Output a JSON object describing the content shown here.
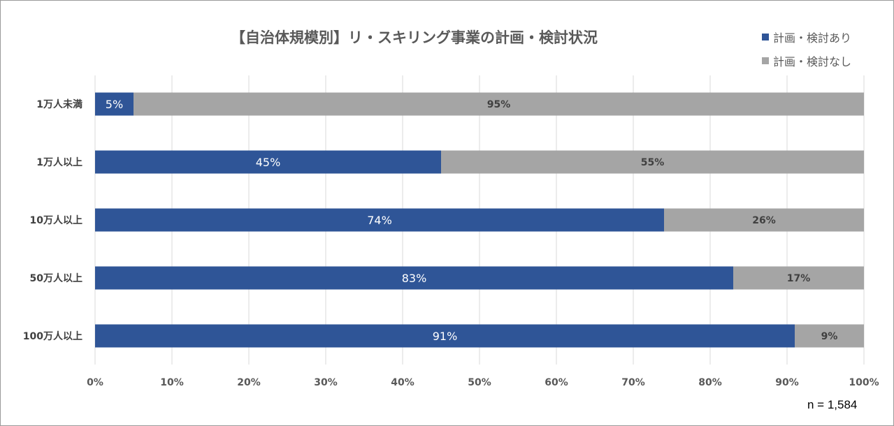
{
  "chart_data": {
    "type": "bar",
    "orientation": "horizontal",
    "stacked": true,
    "title": "【自治体規模別】リ・スキリング事業の計画・検討状況",
    "categories": [
      "1万人未満",
      "1万人以上",
      "10万人以上",
      "50万人以上",
      "100万人以上"
    ],
    "series": [
      {
        "name": "計画・検討あり",
        "values": [
          5,
          45,
          74,
          83,
          91
        ],
        "labels": [
          "5%",
          "45%",
          "74%",
          "83%",
          "91%"
        ],
        "color": "#2F5597"
      },
      {
        "name": "計画・検討なし",
        "values": [
          95,
          55,
          26,
          17,
          9
        ],
        "labels": [
          "95%",
          "55%",
          "26%",
          "17%",
          "9%"
        ],
        "color": "#A5A5A5"
      }
    ],
    "xlim": [
      0,
      100
    ],
    "xticks": [
      "0%",
      "10%",
      "20%",
      "30%",
      "40%",
      "50%",
      "60%",
      "70%",
      "80%",
      "90%",
      "100%"
    ],
    "grid": true,
    "legend_position": "top-right",
    "note": "n = 1,584"
  }
}
